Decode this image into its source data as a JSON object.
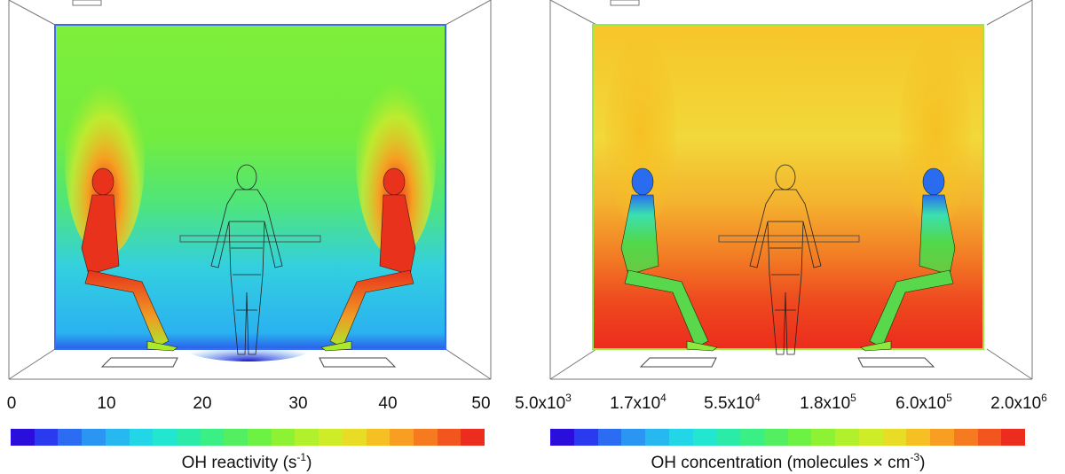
{
  "left_panel": {
    "colorbar": {
      "ticks": [
        "0",
        "10",
        "20",
        "30",
        "40",
        "50"
      ],
      "label": "OH reactivity (s",
      "label_sup": "-1",
      "label_tail": ")",
      "colors": [
        "#2a0fdc",
        "#2a3aee",
        "#2c6cf2",
        "#2a96f2",
        "#26b8ef",
        "#22d6e8",
        "#22e6cf",
        "#2aeca8",
        "#3aef84",
        "#52f060",
        "#6cf242",
        "#8ef234",
        "#b0f02c",
        "#cfec28",
        "#e8dc26",
        "#f6c024",
        "#f89e22",
        "#f67a20",
        "#f2561e",
        "#ec2c1c"
      ]
    }
  },
  "right_panel": {
    "colorbar": {
      "ticks": [
        {
          "base": "5.0x10",
          "exp": "3"
        },
        {
          "base": "1.7x10",
          "exp": "4"
        },
        {
          "base": "5.5x10",
          "exp": "4"
        },
        {
          "base": "1.8x10",
          "exp": "5"
        },
        {
          "base": "6.0x10",
          "exp": "5"
        },
        {
          "base": "2.0x10",
          "exp": "6"
        }
      ],
      "label": "OH concentration (molecules × cm",
      "label_sup": "-3",
      "label_tail": ")",
      "colors": [
        "#2a0fdc",
        "#2a3aee",
        "#2c6cf2",
        "#2a96f2",
        "#26b8ef",
        "#22d6e8",
        "#22e6cf",
        "#2aeca8",
        "#3aef84",
        "#52f060",
        "#6cf242",
        "#8ef234",
        "#b0f02c",
        "#cfec28",
        "#e8dc26",
        "#f6c024",
        "#f89e22",
        "#f67a20",
        "#f2561e",
        "#ec2c1c"
      ]
    }
  },
  "colors": {
    "left_top": "#7fef3a",
    "left_mid": "#4de58a",
    "left_bottom": "#2fb7f0",
    "left_floor": "#2030e0",
    "left_body": "#e8321c",
    "right_top": "#f4d934",
    "right_mid": "#f5a72a",
    "right_bottom": "#ee3a1e",
    "right_head": "#2a6cf0",
    "right_body": "#58d84a"
  }
}
